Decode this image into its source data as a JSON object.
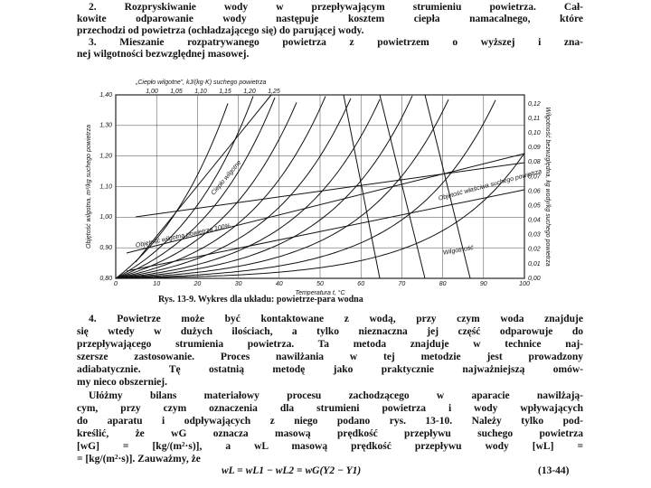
{
  "section_top": {
    "lines": [
      "2. Rozpryskiwanie wody w przepływającym strumieniu powietrza. Cał-",
      "kowite odparowanie wody następuje kosztem ciepła namacalnego, które",
      "przechodzi od powietrza (ochładzającego się) do parującej wody.",
      "3. Mieszanie rozpatrywanego powietrza z powietrzem o wyższej i zna-",
      "nej wilgotności bezwzględnej masowej."
    ]
  },
  "figure": {
    "top_axis_label": "„Ciepło wilgotne”, kJ/(kg·K) suchego powietrza",
    "top_ticks": [
      "1,00",
      "1,05",
      "1,10",
      "1,15",
      "1,20",
      "1,25"
    ],
    "left_axis_label": "Objętość wilgotna, m³/kg suchego powietrza",
    "left_ticks": [
      "1,40",
      "1,30",
      "1,20",
      "1,10",
      "1,00",
      "0,90",
      "0,80"
    ],
    "right_axis_label": "Wilgotność bezwzględna, kg wody/kg suchego powietrza",
    "right_ticks": [
      "0,12",
      "0,11",
      "0,10",
      "0,09",
      "0,08",
      "0,07",
      "0,06",
      "0,05",
      "0,04",
      "0,03",
      "0,02",
      "0,01",
      "0,00"
    ],
    "bottom_ticks": [
      "0",
      "10",
      "20",
      "30",
      "40",
      "50",
      "60",
      "70",
      "80",
      "90",
      "100"
    ],
    "bottom_axis_label": "Temperatura t, °C",
    "annotations": [
      "Ciepło wilgotne",
      "Objętość wilgotna powietrza 100%",
      "Objętość właściwa suchego powietrza",
      "Wilgotność"
    ],
    "caption": "Rys. 13-9. Wykres dla układu: powietrze-para wodna"
  },
  "section_bottom": {
    "lines": [
      "4. Powietrze może być kontaktowane z wodą, przy czym woda znajduje",
      "się wtedy w dużych ilościach, a tylko nieznaczna jej część odparowuje do",
      "przepływającego strumienia powietrza. Ta metoda znajduje w technice naj-",
      "szersze zastosowanie. Proces nawilżania w tej metodzie jest prowadzony",
      "adiabatycznie. Tę ostatnią metodę jako praktycznie najważniejszą omów-",
      "my nieco obszerniej.",
      "Ułóżmy bilans materiałowy procesu zachodzącego w aparacie nawilżają-",
      "cym, przy czym oznaczenia dla strumieni powietrza i wody wpływających",
      "do aparatu i odpływających z niego podano rys. 13-10. Należy tylko pod-",
      "kreślić, że wG oznacza masową prędkość przepływu suchego powietrza",
      "[wG] = [kg/(m²·s)], a wL masową prędkość przepływu wody [wL] =",
      "= [kg/(m²·s)]. Zauważmy, że"
    ],
    "equation": "wL = wL1 − wL2 = wG(Y2 − Y1)",
    "equation_number": "(13-44)"
  }
}
